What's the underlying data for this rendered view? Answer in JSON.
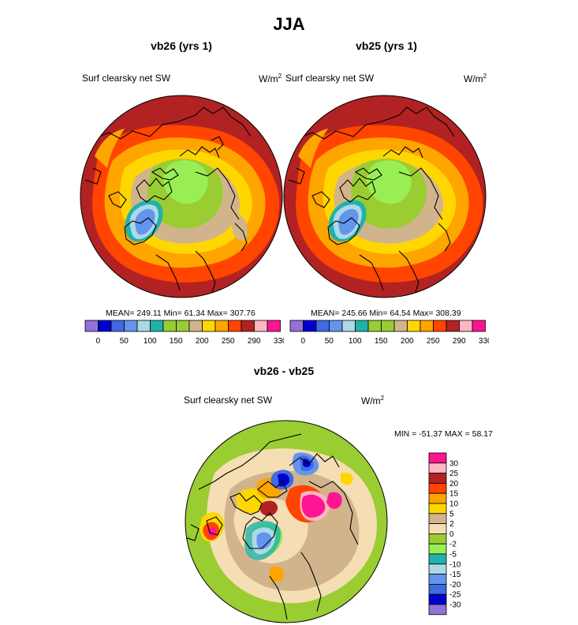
{
  "figure": {
    "title": "JJA",
    "diff_title": "vb26 - vb25"
  },
  "panels": [
    {
      "id": "vb26",
      "title": "vb26 (yrs 1)",
      "variable": "Surf clearsky net SW",
      "units": "W/m",
      "units_sup": "2",
      "stats": "MEAN= 249.11  Min=  61.34  Max= 307.76"
    },
    {
      "id": "vb25",
      "title": "vb25 (yrs 1)",
      "variable": "Surf clearsky net SW",
      "units": "W/m",
      "units_sup": "2",
      "stats": "MEAN= 245.66  Min=  64.54  Max= 308.39"
    }
  ],
  "abs_colorbar": {
    "colors": [
      "#9370db",
      "#0000cd",
      "#4169e1",
      "#6495ed",
      "#add8e6",
      "#20b2aa",
      "#9acd32",
      "#99cc33",
      "#d2b48c",
      "#ffd700",
      "#ffa500",
      "#ff4500",
      "#b22222",
      "#ffb6c1",
      "#ff1493"
    ],
    "labels": [
      "0",
      "50",
      "100",
      "150",
      "200",
      "250",
      "290",
      "330"
    ]
  },
  "diff_panel": {
    "variable": "Surf clearsky net SW",
    "units": "W/m",
    "units_sup": "2",
    "minmax": "MIN = -51.37 MAX =  58.17"
  },
  "diff_colorbar": {
    "colors_top_to_bottom": [
      "#ff1493",
      "#ffb6c1",
      "#b22222",
      "#ff4500",
      "#ffa500",
      "#ffd700",
      "#d2b48c",
      "#f5deb3",
      "#9acd32",
      "#99ee55",
      "#20b2aa",
      "#add8e6",
      "#6495ed",
      "#4169e1",
      "#0000cd",
      "#9370db"
    ],
    "labels": [
      "30",
      "25",
      "20",
      "15",
      "10",
      "5",
      "2",
      "0",
      "-2",
      "-5",
      "-10",
      "-15",
      "-20",
      "-25",
      "-30"
    ]
  },
  "map_palette": {
    "red": "#b22222",
    "orange_red": "#ff4500",
    "orange": "#ffa500",
    "yellow": "#ffd700",
    "tan": "#d2b48c",
    "wheat": "#f5deb3",
    "green": "#9acd32",
    "lgreen": "#99ee55",
    "teal": "#20b2aa",
    "cyan": "#add8e6",
    "lblue": "#6495ed",
    "blue": "#4169e1",
    "navy": "#0000cd",
    "pink": "#ffb6c1",
    "magenta": "#ff1493",
    "purple": "#9370db"
  }
}
